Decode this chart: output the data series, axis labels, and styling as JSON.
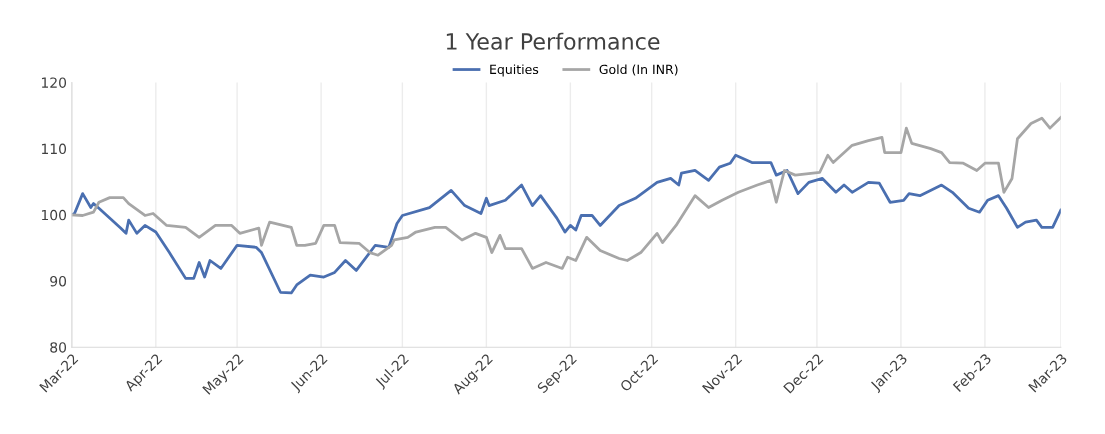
{
  "chart_data": {
    "type": "line",
    "title": "1 Year Performance",
    "xlim": [
      "2022-03-01",
      "2023-03-01"
    ],
    "xticks": [
      {
        "value": "2022-03-01",
        "label": "Mar-22"
      },
      {
        "value": "2022-04-01",
        "label": "Apr-22"
      },
      {
        "value": "2022-05-01",
        "label": "May-22"
      },
      {
        "value": "2022-06-01",
        "label": "Jun-22"
      },
      {
        "value": "2022-07-01",
        "label": "Jul-22"
      },
      {
        "value": "2022-08-01",
        "label": "Aug-22"
      },
      {
        "value": "2022-09-01",
        "label": "Sep-22"
      },
      {
        "value": "2022-10-01",
        "label": "Oct-22"
      },
      {
        "value": "2022-11-01",
        "label": "Nov-22"
      },
      {
        "value": "2022-12-01",
        "label": "Dec-22"
      },
      {
        "value": "2023-01-01",
        "label": "Jan-23"
      },
      {
        "value": "2023-02-01",
        "label": "Feb-23"
      },
      {
        "value": "2023-03-01",
        "label": "Mar-23"
      }
    ],
    "ylim": [
      80,
      120
    ],
    "yticks": [
      80,
      90,
      100,
      110,
      120
    ],
    "grid": "x",
    "legend": "top",
    "line_style": "solid",
    "series": [
      {
        "name": "Equities",
        "color": "#4a6fb0",
        "x": [
          "2022-03-01",
          "2022-03-02",
          "2022-03-05",
          "2022-03-08",
          "2022-03-09",
          "2022-03-11",
          "2022-03-19",
          "2022-03-21",
          "2022-03-22",
          "2022-03-25",
          "2022-03-28",
          "2022-04-01",
          "2022-04-06",
          "2022-04-12",
          "2022-04-15",
          "2022-04-17",
          "2022-04-19",
          "2022-04-21",
          "2022-04-25",
          "2022-05-01",
          "2022-05-08",
          "2022-05-10",
          "2022-05-17",
          "2022-05-21",
          "2022-05-23",
          "2022-05-28",
          "2022-06-02",
          "2022-06-06",
          "2022-06-10",
          "2022-06-14",
          "2022-06-21",
          "2022-06-26",
          "2022-06-29",
          "2022-07-01",
          "2022-07-11",
          "2022-07-19",
          "2022-07-24",
          "2022-07-30",
          "2022-08-01",
          "2022-08-02",
          "2022-08-08",
          "2022-08-14",
          "2022-08-18",
          "2022-08-21",
          "2022-08-27",
          "2022-08-30",
          "2022-09-01",
          "2022-09-03",
          "2022-09-05",
          "2022-09-09",
          "2022-09-12",
          "2022-09-19",
          "2022-09-25",
          "2022-10-03",
          "2022-10-08",
          "2022-10-11",
          "2022-10-12",
          "2022-10-17",
          "2022-10-22",
          "2022-10-26",
          "2022-10-30",
          "2022-11-01",
          "2022-11-07",
          "2022-11-14",
          "2022-11-16",
          "2022-11-20",
          "2022-11-24",
          "2022-11-28",
          "2022-12-03",
          "2022-12-08",
          "2022-12-11",
          "2022-12-14",
          "2022-12-20",
          "2022-12-24",
          "2022-12-28",
          "2023-01-02",
          "2023-01-04",
          "2023-01-08",
          "2023-01-16",
          "2023-01-20",
          "2023-01-26",
          "2023-01-30",
          "2023-02-02",
          "2023-02-06",
          "2023-02-09",
          "2023-02-13",
          "2023-02-16",
          "2023-02-20",
          "2023-02-22",
          "2023-02-26",
          "2023-03-01"
        ],
        "values": [
          100,
          100.2,
          103.2,
          101.1,
          101.7,
          101,
          98,
          97.2,
          99.2,
          97.2,
          98.4,
          97.4,
          94.3,
          90.4,
          90.4,
          92.8,
          90.6,
          93.1,
          91.9,
          95.4,
          95.1,
          94.3,
          88.3,
          88.2,
          89.4,
          90.9,
          90.6,
          91.3,
          93.1,
          91.6,
          95.4,
          95.1,
          98.7,
          99.9,
          101.1,
          103.7,
          101.4,
          100.2,
          102.5,
          101.4,
          102.2,
          104.5,
          101.4,
          102.9,
          99.5,
          97.4,
          98.4,
          97.7,
          99.9,
          99.9,
          98.4,
          101.4,
          102.5,
          104.9,
          105.5,
          104.5,
          106.3,
          106.7,
          105.2,
          107.2,
          107.8,
          109,
          107.9,
          107.9,
          106,
          106.7,
          103.2,
          104.9,
          105.5,
          103.4,
          104.5,
          103.4,
          104.9,
          104.8,
          101.9,
          102.2,
          103.2,
          102.9,
          104.5,
          103.4,
          101,
          100.4,
          102.2,
          102.9,
          101,
          98.1,
          98.9,
          99.2,
          98.1,
          98.1,
          100.7
        ]
      },
      {
        "name": "Gold (In INR)",
        "color": "#a6a6a6",
        "x": [
          "2022-03-01",
          "2022-03-05",
          "2022-03-09",
          "2022-03-11",
          "2022-03-15",
          "2022-03-20",
          "2022-03-22",
          "2022-03-28",
          "2022-03-31",
          "2022-04-05",
          "2022-04-12",
          "2022-04-17",
          "2022-04-23",
          "2022-04-29",
          "2022-05-02",
          "2022-05-09",
          "2022-05-10",
          "2022-05-13",
          "2022-05-21",
          "2022-05-23",
          "2022-05-26",
          "2022-05-30",
          "2022-06-02",
          "2022-06-06",
          "2022-06-08",
          "2022-06-15",
          "2022-06-19",
          "2022-06-22",
          "2022-06-27",
          "2022-06-28",
          "2022-07-03",
          "2022-07-06",
          "2022-07-13",
          "2022-07-17",
          "2022-07-23",
          "2022-07-28",
          "2022-08-01",
          "2022-08-03",
          "2022-08-06",
          "2022-08-08",
          "2022-08-14",
          "2022-08-18",
          "2022-08-23",
          "2022-08-29",
          "2022-08-31",
          "2022-09-03",
          "2022-09-07",
          "2022-09-12",
          "2022-09-19",
          "2022-09-22",
          "2022-09-27",
          "2022-10-03",
          "2022-10-05",
          "2022-10-10",
          "2022-10-17",
          "2022-10-22",
          "2022-10-27",
          "2022-11-02",
          "2022-11-09",
          "2022-11-14",
          "2022-11-16",
          "2022-11-19",
          "2022-11-23",
          "2022-12-02",
          "2022-12-05",
          "2022-12-07",
          "2022-12-14",
          "2022-12-20",
          "2022-12-25",
          "2022-12-26",
          "2023-01-01",
          "2023-01-03",
          "2023-01-05",
          "2023-01-12",
          "2023-01-16",
          "2023-01-19",
          "2023-01-24",
          "2023-01-29",
          "2023-02-01",
          "2023-02-06",
          "2023-02-08",
          "2023-02-11",
          "2023-02-13",
          "2023-02-18",
          "2023-02-22",
          "2023-02-25",
          "2023-03-01"
        ],
        "values": [
          100,
          99.9,
          100.4,
          101.9,
          102.6,
          102.6,
          101.7,
          99.9,
          100.2,
          98.4,
          98.1,
          96.6,
          98.4,
          98.4,
          97.2,
          98,
          95.4,
          98.9,
          98.1,
          95.4,
          95.4,
          95.7,
          98.4,
          98.4,
          95.8,
          95.7,
          94.3,
          93.9,
          95.4,
          96.2,
          96.6,
          97.4,
          98.1,
          98.1,
          96.2,
          97.2,
          96.6,
          94.3,
          96.9,
          94.9,
          94.9,
          91.9,
          92.8,
          91.9,
          93.6,
          93.1,
          96.6,
          94.6,
          93.4,
          93.1,
          94.3,
          97.2,
          95.8,
          98.4,
          102.9,
          101.1,
          102.2,
          103.4,
          104.5,
          105.2,
          101.9,
          106.7,
          106,
          106.4,
          109,
          107.9,
          110.5,
          111.2,
          111.7,
          109.4,
          109.4,
          113.1,
          110.8,
          110,
          109.4,
          107.9,
          107.8,
          106.7,
          107.8,
          107.8,
          103.4,
          105.5,
          111.5,
          113.8,
          114.6,
          113.1,
          114.7
        ]
      }
    ]
  }
}
